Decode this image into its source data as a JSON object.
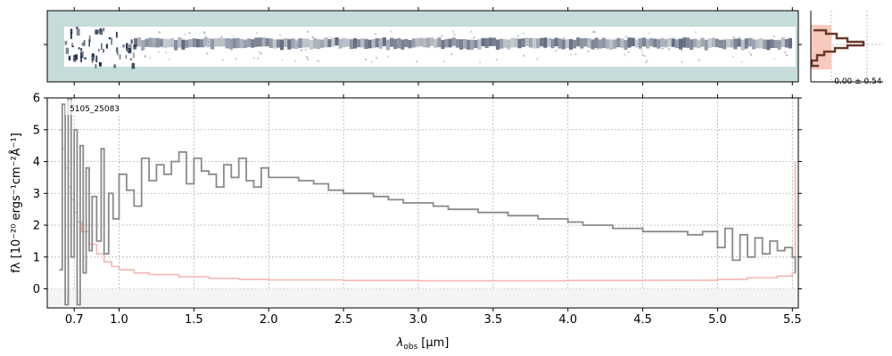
{
  "colors": {
    "spectrum": "#8a8a8a",
    "error": "#f4b6b0",
    "error_edge": "#e8706a",
    "panel2d_bg": "#c5dcda",
    "trace_dark": "#1d2b47",
    "hist_line": "#6b3a2a",
    "hist_fill": "#f9c9be",
    "grid": "#b0b0b0"
  },
  "chart_data": [
    {
      "type": "heatmap",
      "panel": "2d-spectrum",
      "x_range": [
        0.52,
        5.54
      ],
      "description_axis": "wavelength-aligned with the 1D spectrum panel"
    },
    {
      "type": "histogram",
      "panel": "pixel-distribution",
      "annotation": "-0.00 ± 0.54"
    },
    {
      "type": "line",
      "drawstyle": "steps",
      "label": "5105_25083",
      "xlabel_main": "λ",
      "xlabel_sub": "obs",
      "xlabel_unit": "[μm]",
      "ylabel": "fλ [10⁻²⁰ ergs⁻¹cm⁻²Å⁻¹]",
      "xlim": [
        0.52,
        5.54
      ],
      "ylim": [
        -0.6,
        6
      ],
      "x_ticks": [
        0.7,
        1.0,
        1.5,
        2.0,
        2.5,
        3.0,
        3.5,
        4.0,
        4.5,
        5.0,
        5.5
      ],
      "x_tick_labels": [
        "0.7",
        "1.0",
        "1.5",
        "2.0",
        "2.5",
        "3.0",
        "3.5",
        "4.0",
        "4.5",
        "5.0",
        "5.5"
      ],
      "y_ticks": [
        0,
        1,
        2,
        3,
        4,
        5,
        6
      ],
      "y_tick_labels": [
        "0",
        "1",
        "2",
        "3",
        "4",
        "5",
        "6"
      ],
      "grid": true,
      "series": [
        {
          "role": "flux",
          "x": [
            0.6,
            0.62,
            0.64,
            0.66,
            0.68,
            0.7,
            0.72,
            0.74,
            0.76,
            0.78,
            0.8,
            0.82,
            0.85,
            0.88,
            0.9,
            0.93,
            0.96,
            1.0,
            1.05,
            1.1,
            1.15,
            1.2,
            1.25,
            1.3,
            1.35,
            1.4,
            1.45,
            1.5,
            1.55,
            1.6,
            1.65,
            1.7,
            1.75,
            1.8,
            1.85,
            1.9,
            1.95,
            2.0,
            2.1,
            2.2,
            2.3,
            2.4,
            2.5,
            2.6,
            2.7,
            2.8,
            2.9,
            3.0,
            3.1,
            3.2,
            3.3,
            3.4,
            3.5,
            3.6,
            3.7,
            3.8,
            3.9,
            4.0,
            4.1,
            4.2,
            4.3,
            4.4,
            4.5,
            4.6,
            4.7,
            4.8,
            4.9,
            5.0,
            5.05,
            5.1,
            5.15,
            5.2,
            5.25,
            5.3,
            5.35,
            5.4,
            5.45,
            5.5,
            5.52
          ],
          "y": [
            0.6,
            5.8,
            -0.5,
            6.0,
            1.0,
            5.0,
            -0.5,
            4.5,
            0.5,
            3.8,
            1.2,
            2.9,
            1.5,
            4.4,
            1.1,
            3.0,
            2.2,
            3.6,
            3.1,
            2.6,
            4.1,
            3.4,
            3.9,
            3.6,
            4.0,
            4.3,
            3.3,
            4.1,
            3.7,
            3.6,
            3.2,
            3.9,
            3.5,
            4.1,
            3.4,
            3.2,
            3.8,
            3.5,
            3.5,
            3.4,
            3.3,
            3.1,
            3.0,
            3.0,
            2.9,
            2.8,
            2.7,
            2.7,
            2.6,
            2.5,
            2.5,
            2.4,
            2.4,
            2.3,
            2.3,
            2.2,
            2.2,
            2.1,
            2.0,
            2.0,
            1.9,
            1.9,
            1.8,
            1.8,
            1.8,
            1.7,
            1.8,
            1.3,
            1.9,
            0.9,
            1.7,
            1.0,
            1.6,
            1.1,
            1.5,
            1.2,
            1.3,
            1.0,
            0.5
          ]
        },
        {
          "role": "uncertainty",
          "x": [
            0.6,
            0.62,
            0.64,
            0.66,
            0.68,
            0.7,
            0.72,
            0.75,
            0.8,
            0.85,
            0.9,
            0.95,
            1.0,
            1.1,
            1.2,
            1.4,
            1.6,
            1.8,
            2.0,
            2.5,
            3.0,
            3.5,
            4.0,
            4.5,
            5.0,
            5.2,
            5.4,
            5.5,
            5.52
          ],
          "y": [
            5.0,
            4.4,
            3.8,
            3.2,
            2.8,
            2.4,
            2.1,
            1.8,
            1.4,
            1.1,
            0.85,
            0.7,
            0.6,
            0.5,
            0.45,
            0.38,
            0.33,
            0.3,
            0.28,
            0.26,
            0.25,
            0.25,
            0.26,
            0.27,
            0.3,
            0.35,
            0.4,
            0.5,
            4.0
          ]
        }
      ]
    }
  ]
}
